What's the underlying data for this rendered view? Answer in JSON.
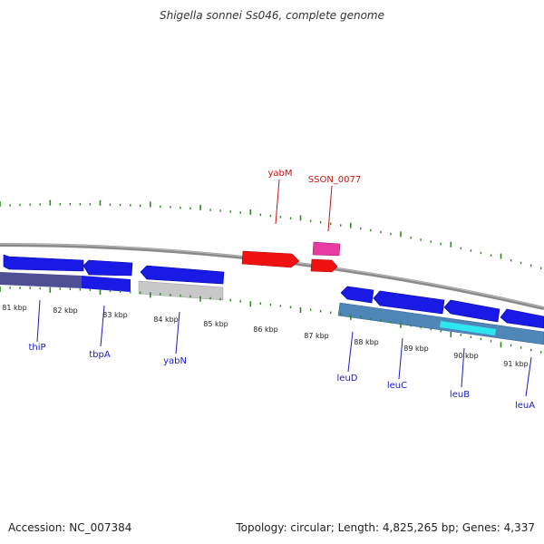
{
  "title": "Shigella sonnei Ss046, complete genome",
  "footer": {
    "accession": "Accession: NC_007384",
    "topology": "Topology: circular; Length: 4,825,265 bp; Genes: 4,337"
  },
  "colors": {
    "backbone": "#8a8a8a",
    "tick": "#2a8a1e",
    "gene_blue": "#1a1ae6",
    "gene_red": "#ee1111",
    "gene_pink": "#e83aa0",
    "label_blue": "#1a1acc",
    "label_red": "#cc1111",
    "cds_grey": "#c8c8c8",
    "cds_slate": "#4f4f94",
    "cds_steel": "#4f86b8",
    "cds_cyan": "#2ee6f0"
  },
  "kbp_labels": [
    "81 kbp",
    "82 kbp",
    "83 kbp",
    "84 kbp",
    "85 kbp",
    "86 kbp",
    "87 kbp",
    "88 kbp",
    "89 kbp",
    "90 kbp",
    "91 kbp"
  ],
  "gene_labels": {
    "red": [
      "yabM",
      "SSON_0077"
    ],
    "blue": [
      "thiP",
      "tbpA",
      "yabN",
      "leuD",
      "leuC",
      "leuB",
      "leuA"
    ]
  }
}
